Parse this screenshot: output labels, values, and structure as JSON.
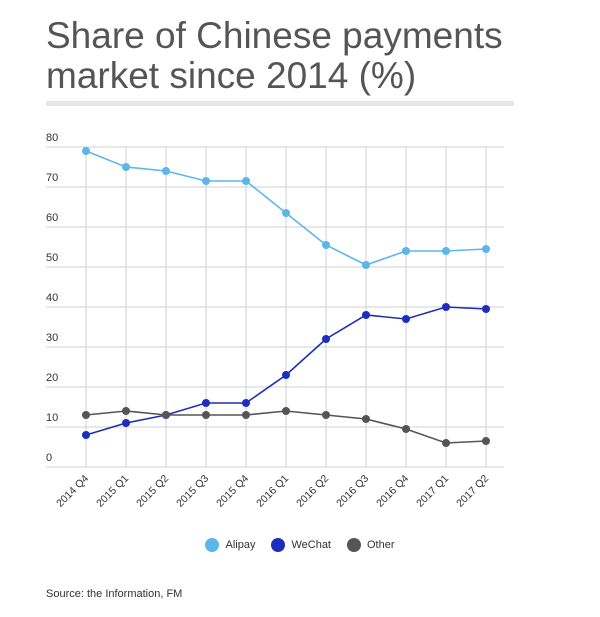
{
  "header": {
    "title": "Share of Chinese payments market since 2014 (%)"
  },
  "source": "Source: the Information, FM",
  "chart_data": {
    "type": "line",
    "title": "Share of Chinese payments market since 2014 (%)",
    "xlabel": "",
    "ylabel": "",
    "categories": [
      "2014 Q4",
      "2015 Q1",
      "2015 Q2",
      "2015 Q3",
      "2015 Q4",
      "2016 Q1",
      "2016 Q2",
      "2016 Q3",
      "2016 Q4",
      "2017 Q1",
      "2017 Q2"
    ],
    "yticks": [
      0,
      10,
      20,
      30,
      40,
      50,
      60,
      70,
      80
    ],
    "ylim": [
      0,
      80
    ],
    "grid": "vertical and horizontal",
    "legend": "bottom-center",
    "series": [
      {
        "name": "Alipay",
        "color": "#5db6ea",
        "values": [
          79,
          75,
          74,
          71.5,
          71.5,
          63.5,
          55.5,
          50.5,
          54,
          54,
          54.5
        ]
      },
      {
        "name": "WeChat",
        "color": "#1c2ebc",
        "values": [
          8,
          11,
          13,
          16,
          16,
          23,
          32,
          38,
          37,
          40,
          39.5
        ]
      },
      {
        "name": "Other",
        "color": "#555555",
        "values": [
          13,
          14,
          13,
          13,
          13,
          14,
          13,
          12,
          9.5,
          6,
          6.5
        ]
      }
    ]
  }
}
